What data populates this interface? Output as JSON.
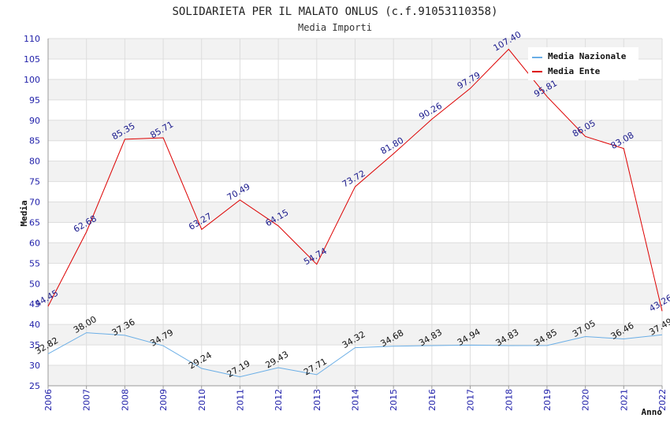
{
  "chart_data": {
    "type": "line",
    "title": "SOLIDARIETA PER IL MALATO ONLUS (c.f.91053110358)",
    "subtitle": "Media Importi",
    "xlabel": "Anno",
    "ylabel": "Media",
    "ylim": [
      25,
      110
    ],
    "ytick_step": 5,
    "categories": [
      "2006",
      "2007",
      "2008",
      "2009",
      "2010",
      "2011",
      "2012",
      "2013",
      "2014",
      "2015",
      "2016",
      "2017",
      "2018",
      "2019",
      "2020",
      "2021",
      "2022"
    ],
    "series": [
      {
        "name": "Media Nazionale",
        "color": "#6aaee6",
        "label_color": "#111111",
        "values": [
          32.82,
          38.0,
          37.36,
          34.79,
          29.24,
          27.19,
          29.43,
          27.71,
          34.32,
          34.68,
          34.83,
          34.94,
          34.83,
          34.85,
          37.05,
          36.46,
          37.49
        ]
      },
      {
        "name": "Media Ente",
        "color": "#dd0000",
        "label_color": "#1a1a8c",
        "values": [
          44.45,
          62.68,
          85.35,
          85.71,
          63.27,
          70.49,
          64.15,
          54.74,
          73.72,
          81.8,
          90.26,
          97.79,
          107.4,
          95.81,
          86.05,
          83.08,
          43.26
        ]
      }
    ],
    "legend_position": "top-right",
    "band_colors": [
      "#f2f2f2",
      "#ffffff"
    ],
    "axis_color": "#999999",
    "grid_color": "#dddddd"
  }
}
